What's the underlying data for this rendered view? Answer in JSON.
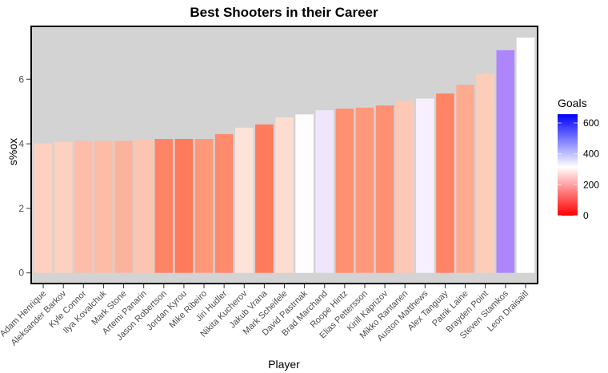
{
  "chart_data": {
    "type": "bar",
    "title": "Best Shooters in their Career",
    "xlabel": "Player",
    "ylabel": "s%ox",
    "ylim": [
      -0.33,
      7.64
    ],
    "yticks": [
      0,
      2,
      4,
      6
    ],
    "categories": [
      "Adam Henrique",
      "Aleksander Barkov",
      "Kyle Connor",
      "Ilya Kovalchuk",
      "Mark Stone",
      "Artemi Panarin",
      "Jason Robertson",
      "Jordan Kyrou",
      "Mike Ribeiro",
      "Jiri Hudler",
      "Nikita Kucherov",
      "Jakub Vrana",
      "Mark Scheifele",
      "David Pastrnak",
      "Brad Marchand",
      "Roope Hintz",
      "Elias Pettersson",
      "Kirill Kaprizov",
      "Mikko Rantanen",
      "Auston Matthews",
      "Alex Tanguay",
      "Patrik Laine",
      "Brayden Point",
      "Steven Stamkos",
      "Leon Draisaitl"
    ],
    "values": [
      4.01,
      4.06,
      4.09,
      4.09,
      4.09,
      4.12,
      4.15,
      4.15,
      4.15,
      4.3,
      4.5,
      4.6,
      4.82,
      4.91,
      5.04,
      5.09,
      5.12,
      5.19,
      5.34,
      5.4,
      5.56,
      5.83,
      6.16,
      6.9,
      7.29
    ],
    "fill_values": [
      245,
      240,
      220,
      215,
      210,
      230,
      115,
      110,
      150,
      130,
      275,
      110,
      260,
      310,
      350,
      130,
      140,
      135,
      235,
      335,
      120,
      200,
      240,
      500,
      315
    ],
    "bar_colors": [
      "#fdd0c0",
      "#fdd0c0",
      "#fdbda8",
      "#fdbca6",
      "#fcb39c",
      "#fdc4b0",
      "#ff8466",
      "#ff7b5c",
      "#ff9878",
      "#ff8a6c",
      "#fee3d8",
      "#ff7b5c",
      "#fedccf",
      "#fffcfe",
      "#efe6fd",
      "#ff9070",
      "#ff9878",
      "#ff9172",
      "#fdc8b4",
      "#f6f0fe",
      "#ff8466",
      "#fdab90",
      "#fdcdba",
      "#ad86fc",
      "#ffffff"
    ],
    "legend": {
      "title": "Goals",
      "ticks": [
        "0",
        "200",
        "400",
        "600"
      ],
      "tick_values": [
        0,
        200,
        400,
        600
      ],
      "range": [
        0,
        657
      ],
      "low_color": "#ff0000",
      "mid_color": "#ffffff",
      "high_color": "#0000ff",
      "position": "right"
    },
    "panel_bg": "#d3d3d3",
    "grid": false
  }
}
